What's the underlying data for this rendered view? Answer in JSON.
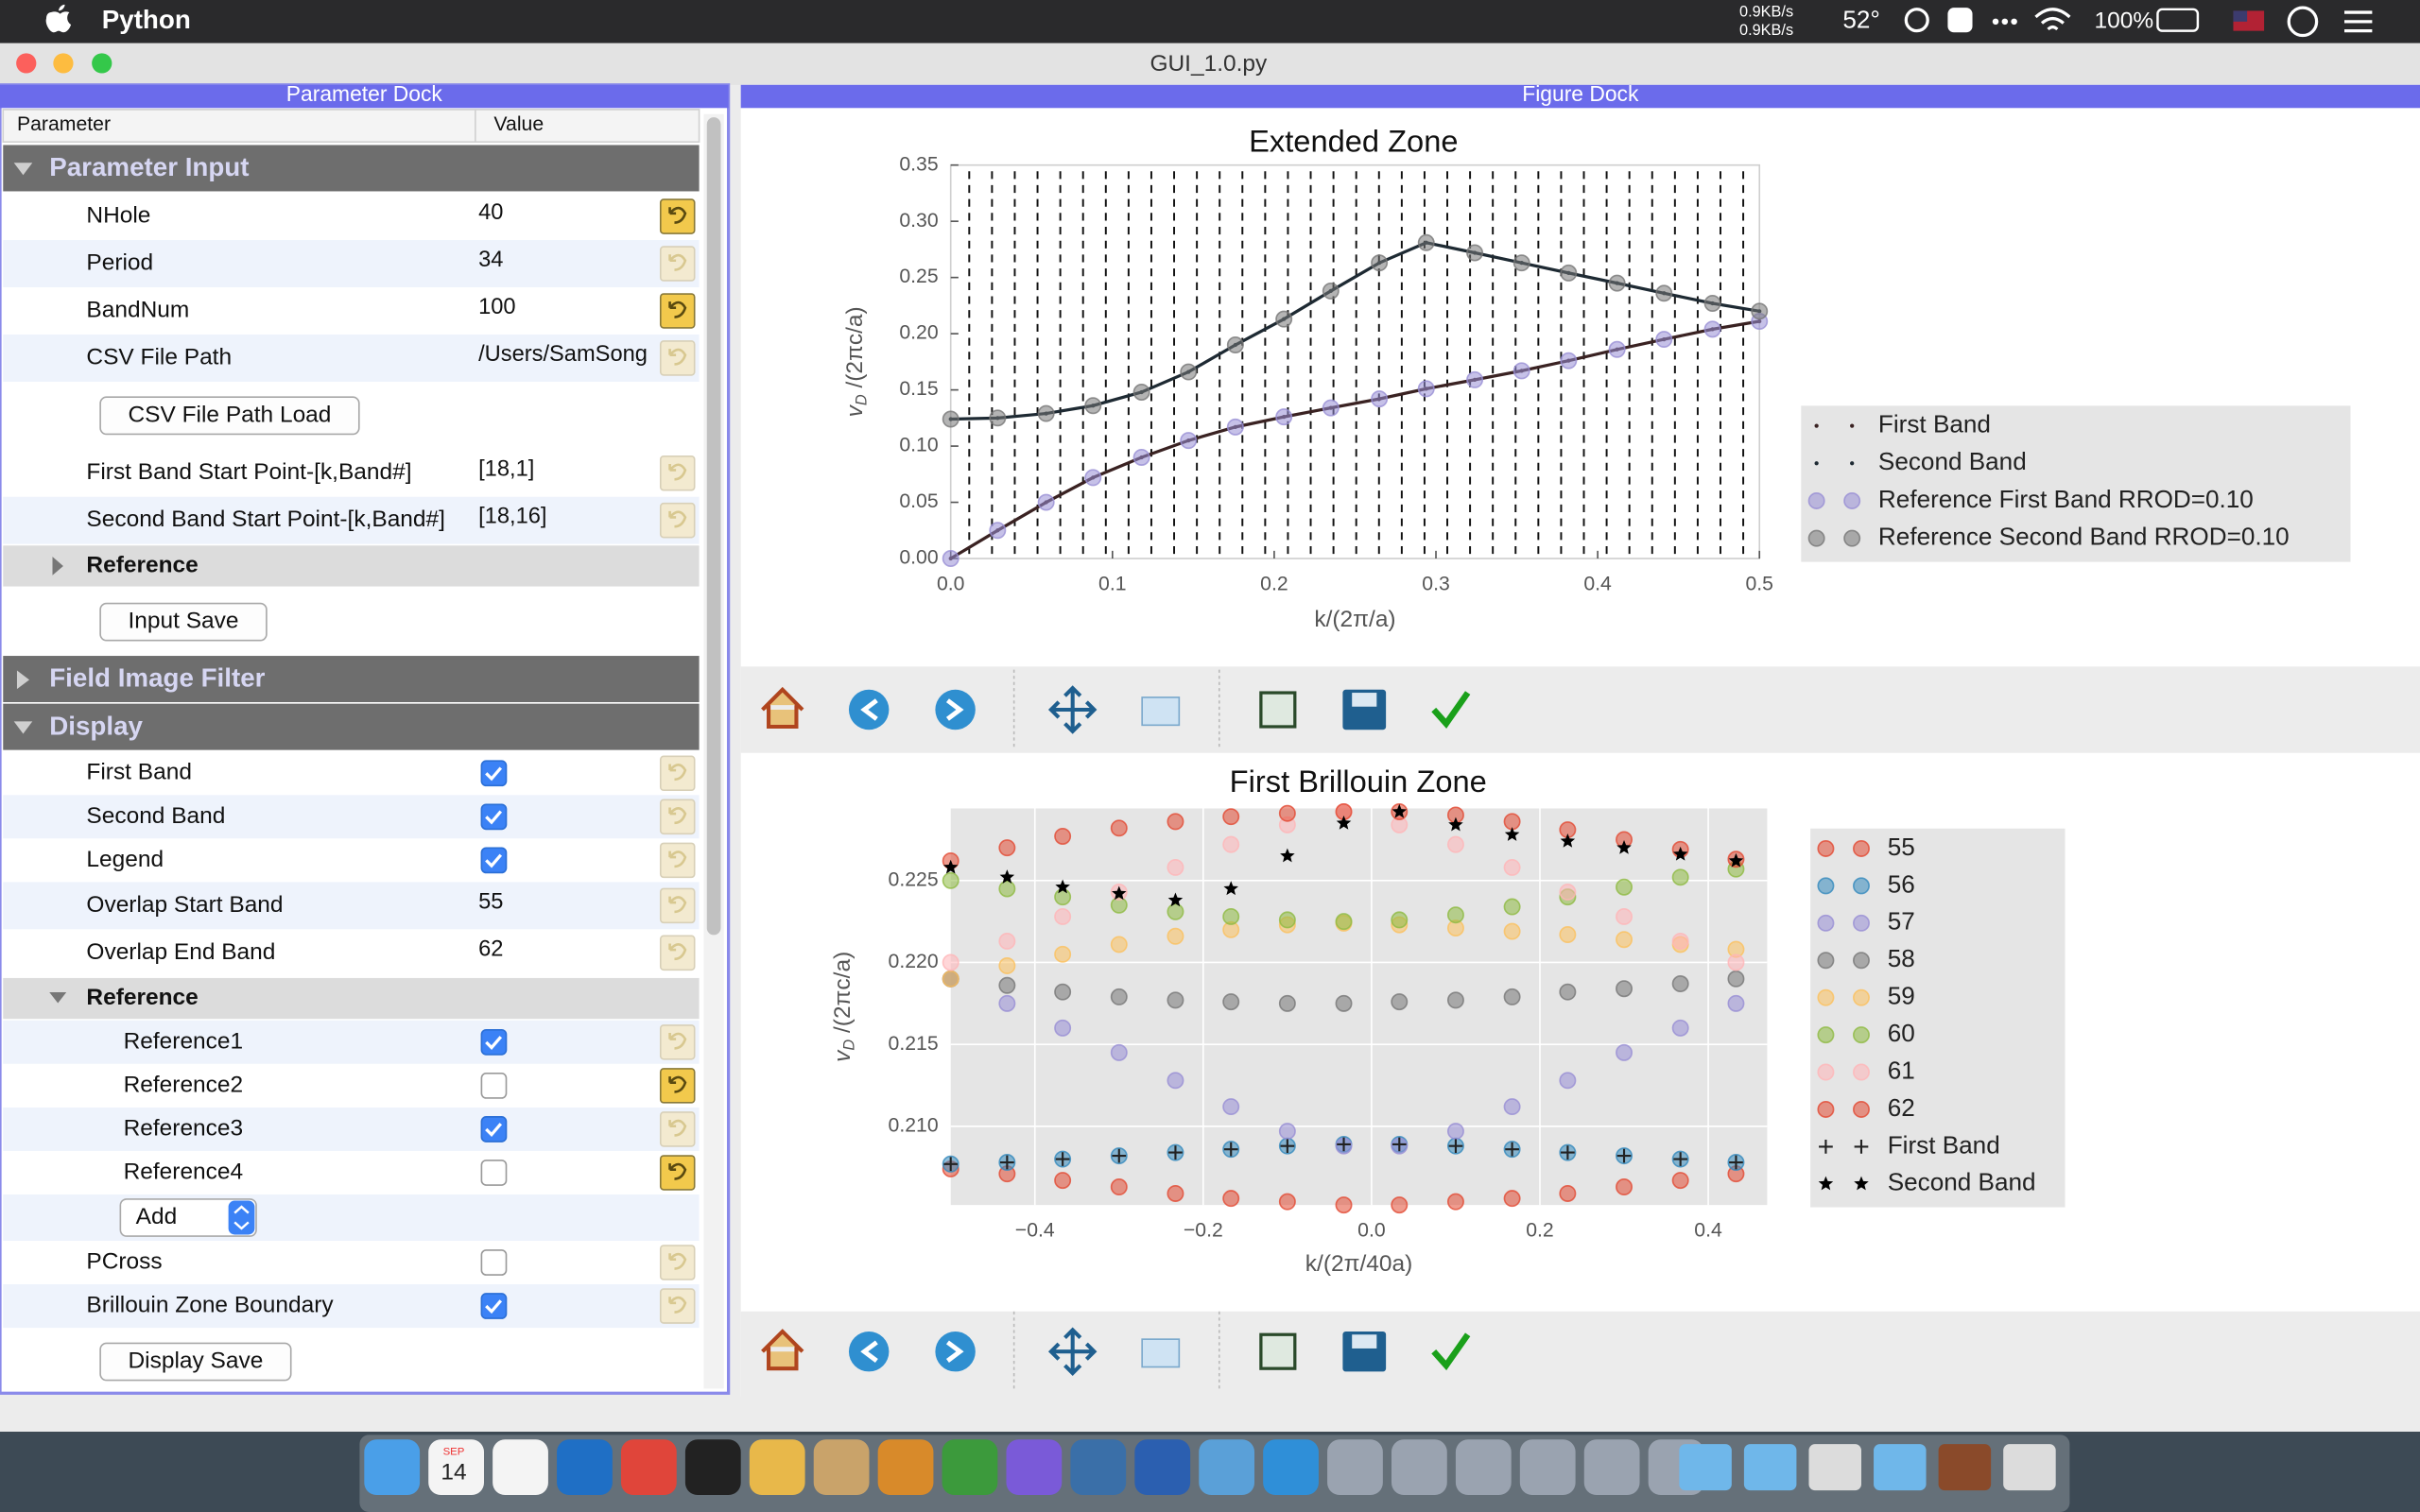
{
  "menubar": {
    "app": "Python",
    "net_up": "0.9KB/s",
    "net_down": "0.9KB/s",
    "temp": "52°",
    "battery": "100%"
  },
  "window": {
    "title": "GUI_1.0.py"
  },
  "param_dock": {
    "title": "Parameter Dock",
    "headers": [
      "Parameter",
      "Value"
    ],
    "rows": [
      {
        "label": "Parameter Input",
        "kind": "group",
        "expanded": true
      },
      {
        "label": "NHole",
        "kind": "item",
        "value": "40",
        "reset_enabled": true
      },
      {
        "label": "Period",
        "kind": "item",
        "value": "34",
        "reset_enabled": false
      },
      {
        "label": "BandNum",
        "kind": "item",
        "value": "100",
        "reset_enabled": true
      },
      {
        "label": "CSV File Path",
        "kind": "item",
        "value": "/Users/SamSong",
        "reset_enabled": false
      },
      {
        "label": "CSV File Path Load",
        "kind": "button"
      },
      {
        "label": "First Band Start Point-[k,Band#]",
        "kind": "item",
        "value": "[18,1]",
        "reset_enabled": false
      },
      {
        "label": "Second Band Start Point-[k,Band#]",
        "kind": "item",
        "value": "[18,16]",
        "reset_enabled": false
      },
      {
        "label": "Reference",
        "kind": "subgroup",
        "expanded": false
      },
      {
        "label": "Input Save",
        "kind": "button"
      },
      {
        "label": "Field Image Filter",
        "kind": "group",
        "expanded": false
      },
      {
        "label": "Display",
        "kind": "group",
        "expanded": true
      },
      {
        "label": "First Band",
        "kind": "check",
        "checked": true,
        "reset_enabled": false
      },
      {
        "label": "Second Band",
        "kind": "check",
        "checked": true,
        "reset_enabled": false
      },
      {
        "label": "Legend",
        "kind": "check",
        "checked": true,
        "reset_enabled": false
      },
      {
        "label": "Overlap Start Band",
        "kind": "item",
        "value": "55",
        "reset_enabled": false
      },
      {
        "label": "Overlap End Band",
        "kind": "item",
        "value": "62",
        "reset_enabled": false
      },
      {
        "label": "Reference",
        "kind": "subgroup",
        "expanded": true
      },
      {
        "label": "Reference1",
        "kind": "check",
        "checked": true,
        "indent": 2,
        "reset_enabled": false
      },
      {
        "label": "Reference2",
        "kind": "check",
        "checked": false,
        "indent": 2,
        "reset_enabled": true
      },
      {
        "label": "Reference3",
        "kind": "check",
        "checked": true,
        "indent": 2,
        "reset_enabled": false
      },
      {
        "label": "Reference4",
        "kind": "check",
        "checked": false,
        "indent": 2,
        "reset_enabled": true
      },
      {
        "label": "Add",
        "kind": "combo"
      },
      {
        "label": "PCross",
        "kind": "check",
        "checked": false,
        "reset_enabled": false
      },
      {
        "label": "Brillouin Zone Boundary",
        "kind": "check",
        "checked": true,
        "reset_enabled": false
      },
      {
        "label": "Display Save",
        "kind": "button"
      }
    ]
  },
  "figure_dock": {
    "title": "Figure Dock"
  },
  "chart_data": [
    {
      "type": "line",
      "title": "Extended Zone",
      "xlabel": "k/(2π/a)",
      "ylabel_parts": [
        "v",
        "D",
        " /(2πc/a)"
      ],
      "background": "#ffffff",
      "grid": false,
      "band_columns": true,
      "legend": "right",
      "xlim": [
        0,
        0.5
      ],
      "xticks": [
        {
          "value": 0,
          "label": "0.0"
        },
        0.1,
        0.2,
        0.3,
        0.4,
        0.5
      ],
      "ylim": [
        0,
        0.35
      ],
      "yticks": [
        {
          "value": 0,
          "label": "0.00"
        },
        0.05,
        {
          "value": 0.1,
          "label": "0.10"
        },
        0.15,
        {
          "value": 0.2,
          "label": "0.20"
        },
        0.25,
        {
          "value": 0.3,
          "label": "0.30"
        },
        0.35
      ],
      "x": [
        0,
        0.029,
        0.059,
        0.088,
        0.118,
        0.147,
        0.176,
        0.206,
        0.235,
        0.265,
        0.294,
        0.324,
        0.353,
        0.382,
        0.412,
        0.441,
        0.471,
        0.5
      ],
      "series": [
        {
          "name": "First Band",
          "color": "#3a2222",
          "marker": ".",
          "line": true,
          "values": [
            0.0,
            0.025,
            0.05,
            0.072,
            0.09,
            0.105,
            0.117,
            0.126,
            0.134,
            0.142,
            0.151,
            0.159,
            0.167,
            0.176,
            0.186,
            0.195,
            0.204,
            0.211
          ]
        },
        {
          "name": "Second Band",
          "color": "#1e2a33",
          "marker": ".",
          "line": true,
          "values": [
            0.124,
            0.125,
            0.129,
            0.136,
            0.148,
            0.166,
            0.19,
            0.213,
            0.238,
            0.263,
            0.281,
            0.272,
            0.263,
            0.254,
            0.245,
            0.236,
            0.227,
            0.22
          ]
        },
        {
          "name": "Reference First Band RROD=0.10",
          "color": "#988ed5",
          "marker": "o",
          "line": false,
          "values": [
            0.0,
            0.025,
            0.05,
            0.072,
            0.09,
            0.105,
            0.117,
            0.126,
            0.134,
            0.142,
            0.151,
            0.159,
            0.167,
            0.176,
            0.186,
            0.195,
            0.204,
            0.211
          ]
        },
        {
          "name": "Reference Second Band RROD=0.10",
          "color": "#777777",
          "marker": "o",
          "line": false,
          "values": [
            0.124,
            0.125,
            0.129,
            0.136,
            0.148,
            0.166,
            0.19,
            0.213,
            0.238,
            0.263,
            0.281,
            0.272,
            0.263,
            0.254,
            0.245,
            0.236,
            0.227,
            0.22
          ]
        }
      ]
    },
    {
      "type": "scatter",
      "title": "First Brillouin Zone",
      "xlabel": "k/(2π/40a)",
      "ylabel_parts": [
        "v",
        "D",
        " /(2πc/a)"
      ],
      "background": "#e5e5e5",
      "grid": true,
      "band_columns": false,
      "legend": "right",
      "xlim": [
        -0.5,
        0.47
      ],
      "xticks": [
        {
          "value": -0.4,
          "label": "−0.4"
        },
        {
          "value": -0.2,
          "label": "−0.2"
        },
        {
          "value": 0,
          "label": "0.0"
        },
        0.2,
        0.4
      ],
      "ylim": [
        0.2052,
        0.2294
      ],
      "yticks": [
        {
          "value": 0.21,
          "label": "0.210"
        },
        0.215,
        {
          "value": 0.22,
          "label": "0.220"
        },
        0.225
      ],
      "x": [
        -0.5,
        -0.433,
        -0.367,
        -0.3,
        -0.233,
        -0.167,
        -0.1,
        -0.033,
        0.033,
        0.1,
        0.167,
        0.233,
        0.3,
        0.367,
        0.433
      ],
      "series": [
        {
          "name": "55",
          "color": "#e24a33",
          "marker": "o",
          "values": [
            0.2074,
            0.2071,
            0.2067,
            0.2063,
            0.2059,
            0.2056,
            0.2054,
            0.2052,
            0.2052,
            0.2054,
            0.2056,
            0.2059,
            0.2063,
            0.2067,
            0.2071
          ]
        },
        {
          "name": "56",
          "color": "#348abd",
          "marker": "o",
          "values": [
            0.2077,
            0.2078,
            0.208,
            0.2082,
            0.2084,
            0.2086,
            0.2088,
            0.2089,
            0.2089,
            0.2088,
            0.2086,
            0.2084,
            0.2082,
            0.208,
            0.2078
          ]
        },
        {
          "name": "57",
          "color": "#988ed5",
          "marker": "o",
          "values": [
            0.219,
            0.2175,
            0.216,
            0.2145,
            0.2128,
            0.2112,
            0.2097,
            0.2088,
            0.2088,
            0.2097,
            0.2112,
            0.2128,
            0.2145,
            0.216,
            0.2175
          ]
        },
        {
          "name": "58",
          "color": "#777777",
          "marker": "o",
          "values": [
            0.219,
            0.2186,
            0.2182,
            0.2179,
            0.2177,
            0.2176,
            0.2175,
            0.2175,
            0.2176,
            0.2177,
            0.2179,
            0.2182,
            0.2184,
            0.2187,
            0.219
          ]
        },
        {
          "name": "59",
          "color": "#fbc15e",
          "marker": "o",
          "values": [
            0.219,
            0.2198,
            0.2205,
            0.2211,
            0.2216,
            0.222,
            0.2223,
            0.2224,
            0.2223,
            0.2221,
            0.2219,
            0.2217,
            0.2214,
            0.2211,
            0.2208
          ]
        },
        {
          "name": "60",
          "color": "#8eba42",
          "marker": "o",
          "values": [
            0.225,
            0.2245,
            0.224,
            0.2235,
            0.2231,
            0.2228,
            0.2226,
            0.2225,
            0.2226,
            0.2229,
            0.2234,
            0.224,
            0.2246,
            0.2252,
            0.2257
          ]
        },
        {
          "name": "61",
          "color": "#ffb5b8",
          "marker": "o",
          "values": [
            0.22,
            0.2213,
            0.2228,
            0.2243,
            0.2258,
            0.2272,
            0.2284,
            0.2292,
            0.2284,
            0.2272,
            0.2258,
            0.2243,
            0.2228,
            0.2213,
            0.22
          ]
        },
        {
          "name": "62",
          "color": "#e24a33",
          "marker": "o",
          "values": [
            0.2262,
            0.227,
            0.2277,
            0.2282,
            0.2286,
            0.2289,
            0.2291,
            0.2292,
            0.2292,
            0.229,
            0.2286,
            0.2281,
            0.2275,
            0.2269,
            0.2263
          ]
        },
        {
          "name": "First Band",
          "color": "#222222",
          "marker": "+",
          "values": [
            0.2077,
            0.2078,
            0.208,
            0.2082,
            0.2084,
            0.2086,
            0.2088,
            0.2089,
            0.2089,
            0.2088,
            0.2086,
            0.2084,
            0.2082,
            0.208,
            0.2078
          ]
        },
        {
          "name": "Second Band",
          "color": "#000000",
          "marker": "*",
          "values": [
            0.2258,
            0.2252,
            0.2246,
            0.2242,
            0.2238,
            0.2245,
            0.2265,
            0.2285,
            0.2292,
            0.2284,
            0.2278,
            0.2274,
            0.227,
            0.2266,
            0.2262
          ]
        }
      ]
    }
  ],
  "dock": {
    "calendar_month": "SEP",
    "calendar_day": "14"
  }
}
